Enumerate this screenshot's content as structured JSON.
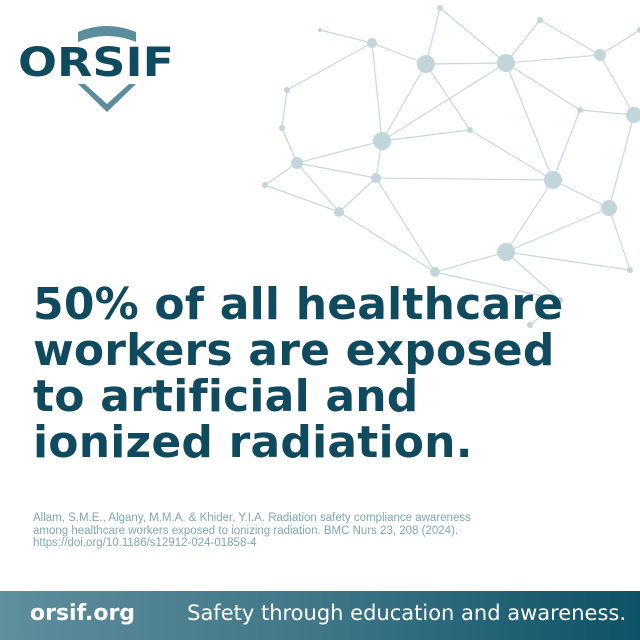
{
  "brand": {
    "logo_text": "ORSIF",
    "color_primary": "#0f4a5e",
    "color_shield": "#5a8e9c"
  },
  "headline": {
    "lines": [
      "50% of all healthcare",
      "workers are exposed",
      "to artificial and",
      "ionized radiation."
    ]
  },
  "citation": {
    "lines": [
      "Allam, S.M.E., Algany, M.M.A. & Khider, Y.I.A. Radiation safety compliance awareness",
      "among healthcare workers exposed to ionizing radiation. BMC Nurs 23, 208 (2024).",
      "https://doi.org/10.1186/s12912-024-01858-4"
    ]
  },
  "footer": {
    "website": "orsif.org",
    "tagline": "Safety through education and awareness."
  }
}
